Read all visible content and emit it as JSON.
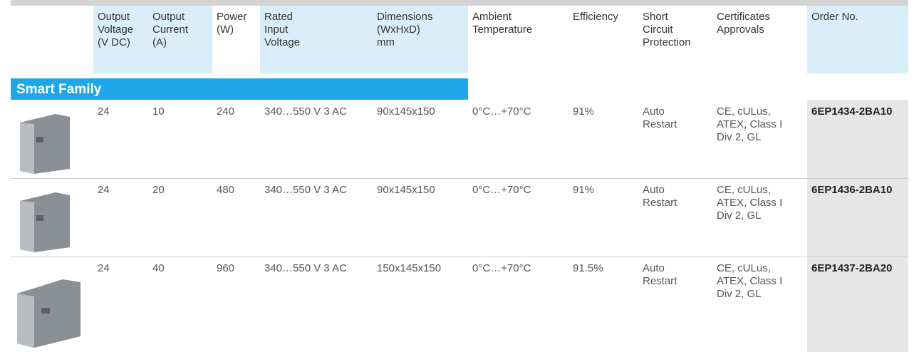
{
  "table": {
    "columns": [
      [
        "Output",
        "Voltage",
        "(V DC)"
      ],
      [
        "Output",
        "Current",
        "(A)"
      ],
      [
        "Power",
        "(W)"
      ],
      [
        "Rated",
        "Input",
        "Voltage"
      ],
      [
        "Dimensions",
        "(WxHxD)",
        "mm"
      ],
      [
        "Ambient",
        "Temperature"
      ],
      [
        "Efficiency"
      ],
      [
        "Short",
        "Circuit",
        "Protection"
      ],
      [
        "Certificates",
        "Approvals"
      ],
      [
        "Order No."
      ]
    ],
    "section": "Smart Family",
    "rows": [
      [
        [
          "24"
        ],
        [
          "10"
        ],
        [
          "240"
        ],
        [
          "340…550 V 3 AC"
        ],
        [
          "90x145x150"
        ],
        [
          "0°C…+70°C"
        ],
        [
          "91%"
        ],
        [
          "Auto",
          "Restart"
        ],
        [
          "CE, cULus,",
          "ATEX, Class I",
          "Div 2, GL"
        ],
        [
          "6EP1434-2BA10"
        ]
      ],
      [
        [
          "24"
        ],
        [
          "20"
        ],
        [
          "480"
        ],
        [
          "340…550 V 3 AC"
        ],
        [
          "90x145x150"
        ],
        [
          "0°C…+70°C"
        ],
        [
          "91%"
        ],
        [
          "Auto",
          "Restart"
        ],
        [
          "CE, cULus,",
          "ATEX, Class I",
          "Div 2, GL"
        ],
        [
          "6EP1436-2BA10"
        ]
      ],
      [
        [
          "24"
        ],
        [
          "40"
        ],
        [
          "960"
        ],
        [
          "340…550 V 3 AC"
        ],
        [
          "150x145x150"
        ],
        [
          "0°C…+70°C"
        ],
        [
          "91.5%"
        ],
        [
          "Auto",
          "Restart"
        ],
        [
          "CE, cULus,",
          "ATEX, Class I",
          "Div 2, GL"
        ],
        [
          "6EP1437-2BA20"
        ]
      ]
    ]
  }
}
